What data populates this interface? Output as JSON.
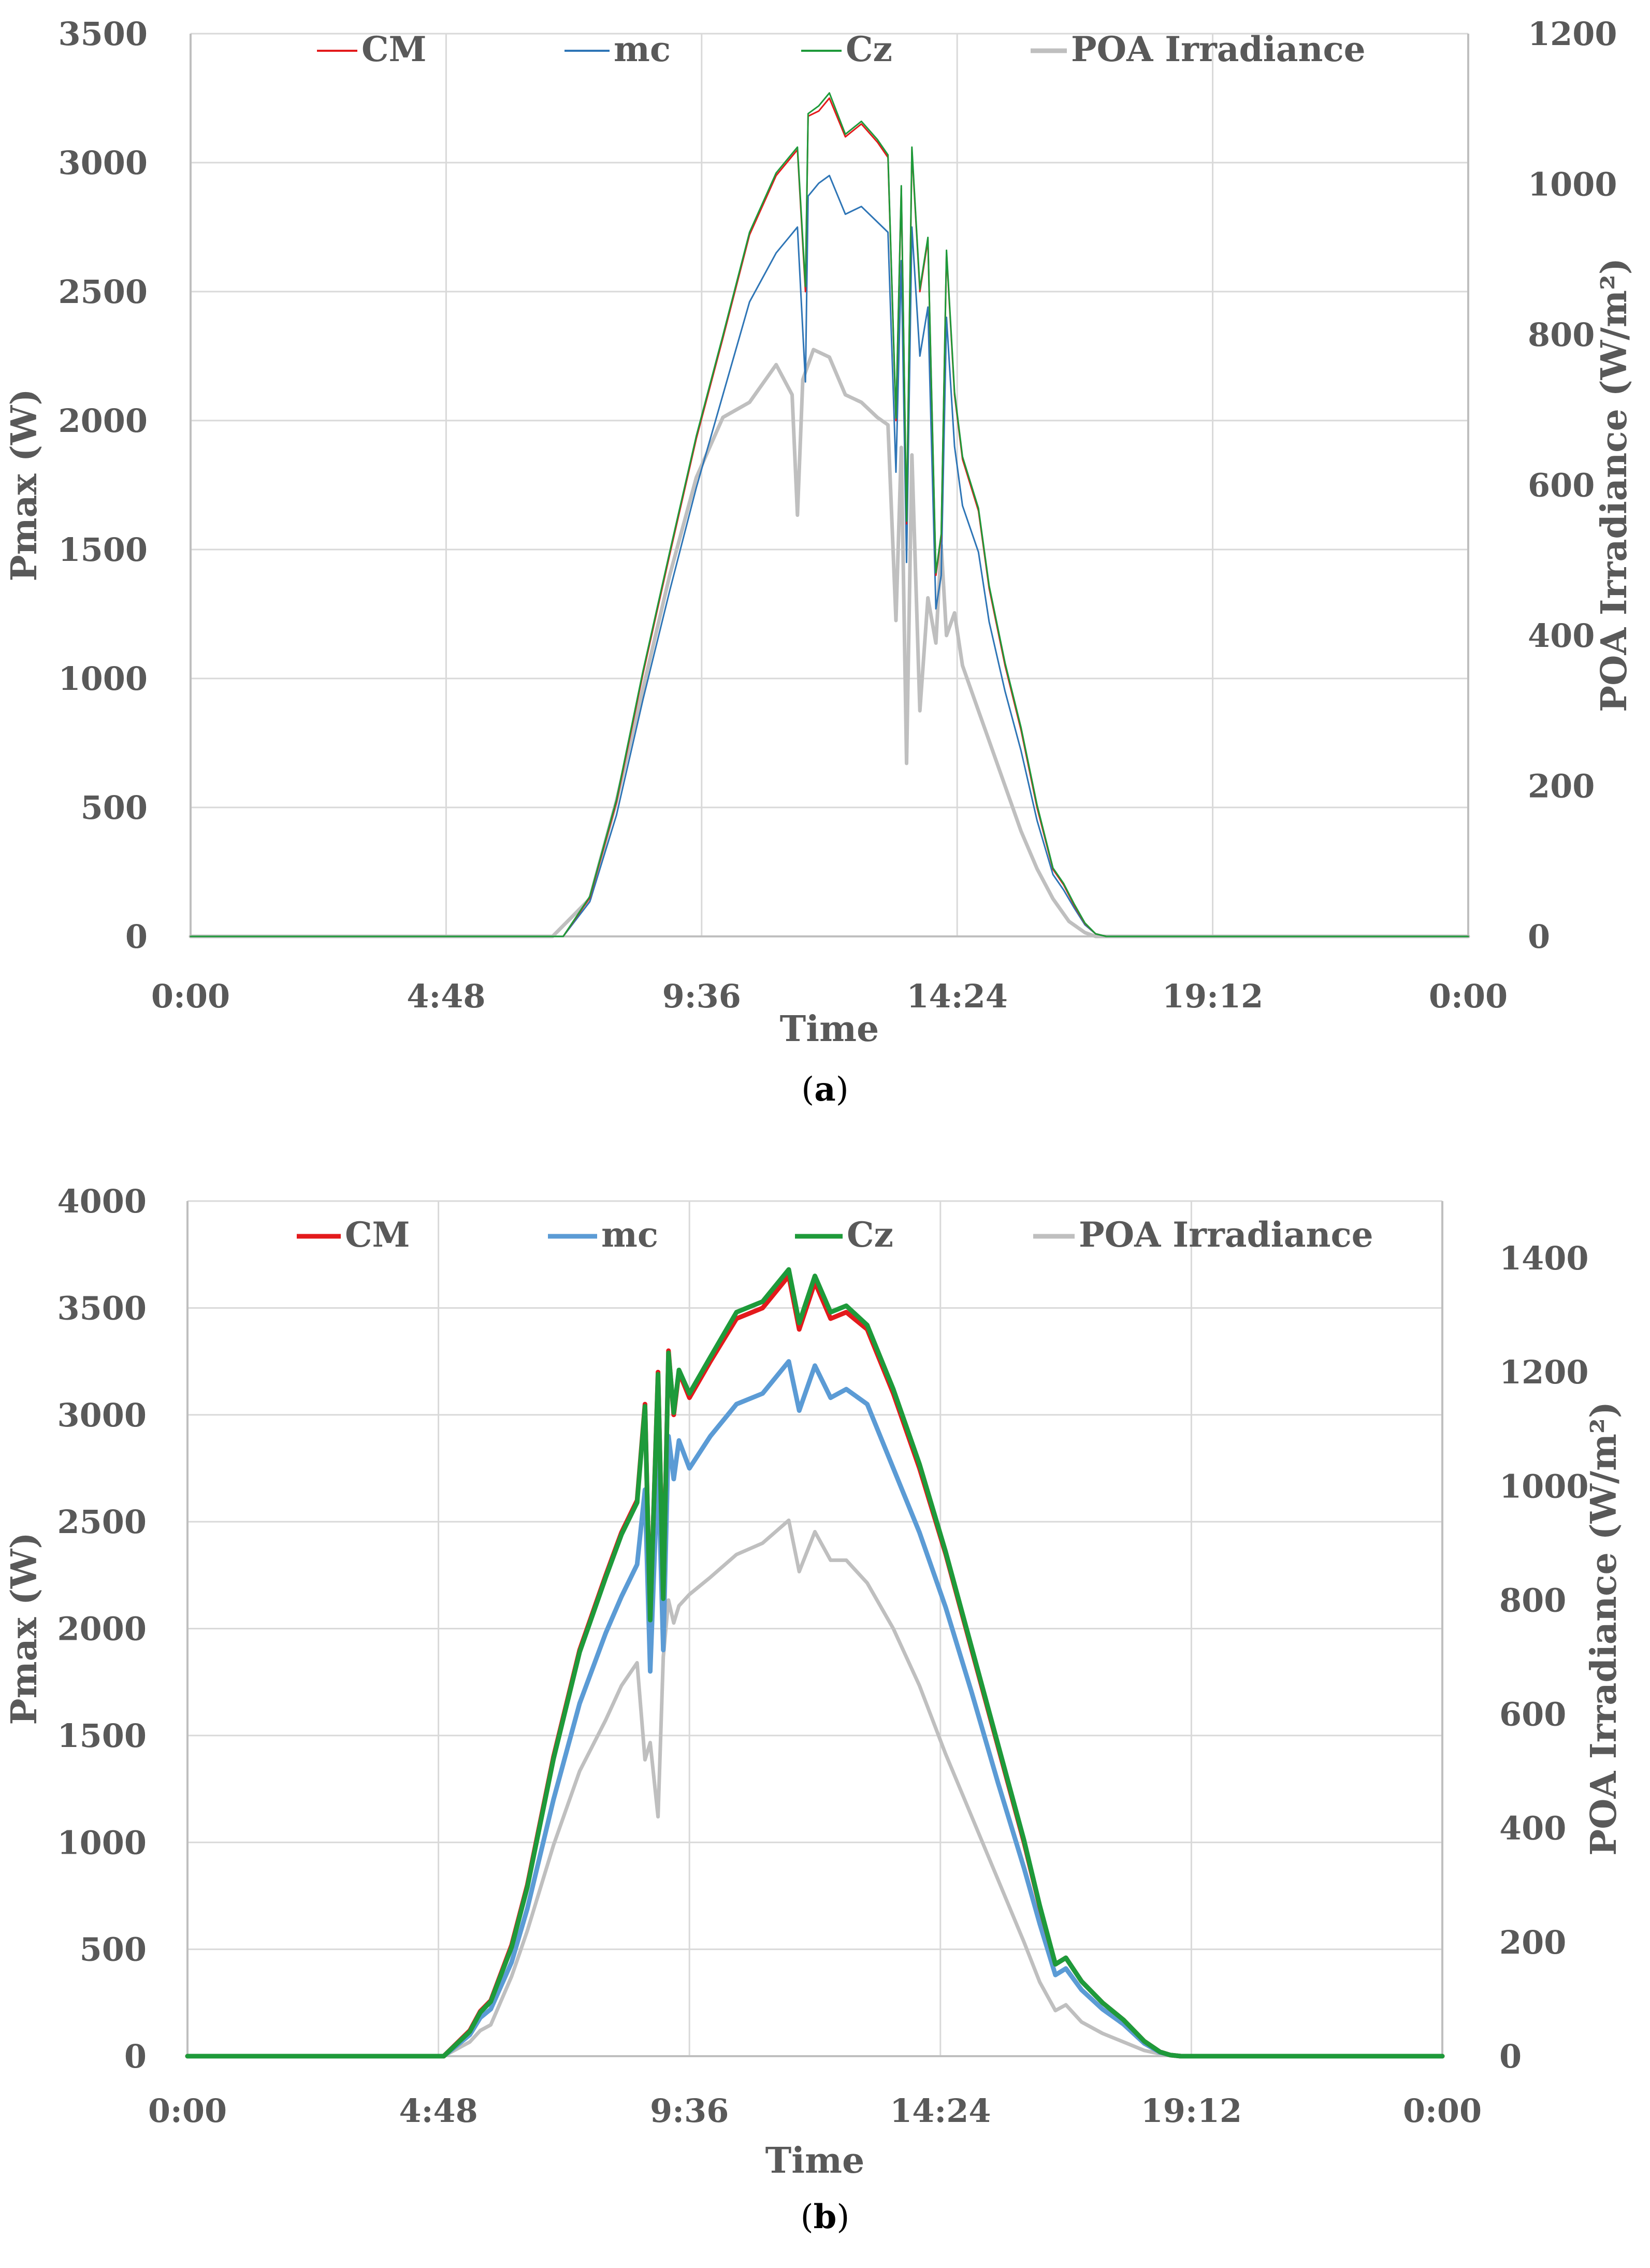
{
  "chart_data": [
    {
      "type": "line",
      "panel": "a",
      "caption": {
        "open": "(",
        "letter": "a",
        "close": ")"
      },
      "xlabel": "Time",
      "ylabel_left": "Pmax (W)",
      "ylabel_right": "POA Irradiance (W/m²)",
      "x_ticks": [
        "0:00",
        "4:48",
        "9:36",
        "14:24",
        "19:12",
        "0:00"
      ],
      "x_range_hours": [
        0,
        24
      ],
      "ylim_left": [
        0,
        3500
      ],
      "ylim_right": [
        0,
        1200
      ],
      "y_ticks_left": [
        0,
        500,
        1000,
        1500,
        2000,
        2500,
        3000,
        3500
      ],
      "y_ticks_right": [
        0,
        200,
        400,
        600,
        800,
        1000,
        1200
      ],
      "legend_position": "top",
      "series": [
        {
          "name": "CM",
          "color": "#e31a1c",
          "width": 3,
          "axis": "left",
          "x": [
            7.0,
            7.5,
            8.0,
            8.5,
            9.0,
            9.5,
            10.0,
            10.5,
            11.0,
            11.4,
            11.55,
            11.6,
            11.8,
            12.0,
            12.3,
            12.6,
            12.9,
            13.1,
            13.25,
            13.35,
            13.45,
            13.55,
            13.7,
            13.85,
            14.0,
            14.1,
            14.2,
            14.35,
            14.5,
            14.8,
            15.0,
            15.3,
            15.6,
            15.9,
            16.2,
            16.4,
            16.6,
            16.8,
            17.0,
            17.2
          ],
          "y": [
            0,
            150,
            520,
            1020,
            1480,
            1930,
            2320,
            2720,
            2950,
            3050,
            2500,
            3180,
            3200,
            3250,
            3100,
            3150,
            3080,
            3020,
            2000,
            2900,
            1600,
            3050,
            2500,
            2700,
            1400,
            1550,
            2650,
            2100,
            1850,
            1650,
            1350,
            1050,
            800,
            500,
            260,
            200,
            120,
            50,
            10,
            0
          ]
        },
        {
          "name": "mc",
          "color": "#2e75b6",
          "width": 3,
          "axis": "left",
          "x": [
            7.0,
            7.5,
            8.0,
            8.5,
            9.0,
            9.5,
            10.0,
            10.5,
            11.0,
            11.4,
            11.55,
            11.6,
            11.8,
            12.0,
            12.3,
            12.6,
            12.9,
            13.1,
            13.25,
            13.35,
            13.45,
            13.55,
            13.7,
            13.85,
            14.0,
            14.1,
            14.2,
            14.35,
            14.5,
            14.8,
            15.0,
            15.3,
            15.6,
            15.9,
            16.2,
            16.4,
            16.6,
            16.8,
            17.0,
            17.2
          ],
          "y": [
            0,
            135,
            470,
            920,
            1340,
            1740,
            2100,
            2460,
            2650,
            2750,
            2150,
            2870,
            2920,
            2950,
            2800,
            2830,
            2770,
            2730,
            1800,
            2620,
            1450,
            2750,
            2250,
            2440,
            1270,
            1400,
            2400,
            1900,
            1670,
            1490,
            1220,
            950,
            720,
            450,
            240,
            180,
            110,
            45,
            10,
            0
          ]
        },
        {
          "name": "Cz",
          "color": "#1e9a3a",
          "width": 3,
          "axis": "left",
          "x": [
            7.0,
            7.5,
            8.0,
            8.5,
            9.0,
            9.5,
            10.0,
            10.5,
            11.0,
            11.4,
            11.55,
            11.6,
            11.8,
            12.0,
            12.3,
            12.6,
            12.9,
            13.1,
            13.25,
            13.35,
            13.45,
            13.55,
            13.7,
            13.85,
            14.0,
            14.1,
            14.2,
            14.35,
            14.5,
            14.8,
            15.0,
            15.3,
            15.6,
            15.9,
            16.2,
            16.4,
            16.6,
            16.8,
            17.0,
            17.2
          ],
          "y": [
            0,
            155,
            530,
            1030,
            1490,
            1940,
            2330,
            2730,
            2960,
            3060,
            2520,
            3190,
            3220,
            3270,
            3110,
            3160,
            3090,
            3030,
            2010,
            2910,
            1610,
            3060,
            2510,
            2710,
            1410,
            1560,
            2660,
            2110,
            1860,
            1660,
            1360,
            1060,
            810,
            510,
            265,
            205,
            125,
            52,
            10,
            0
          ]
        },
        {
          "name": "POA Irradiance",
          "color": "#bfbfbf",
          "width": 7,
          "axis": "right",
          "x": [
            6.8,
            7.5,
            8.0,
            8.5,
            9.0,
            9.5,
            10.0,
            10.5,
            11.0,
            11.3,
            11.4,
            11.5,
            11.7,
            12.0,
            12.3,
            12.6,
            12.9,
            13.1,
            13.25,
            13.35,
            13.45,
            13.55,
            13.7,
            13.85,
            14.0,
            14.1,
            14.2,
            14.35,
            14.5,
            14.8,
            15.0,
            15.3,
            15.6,
            15.9,
            16.2,
            16.5,
            16.8,
            17.0
          ],
          "y": [
            0,
            50,
            180,
            330,
            480,
            610,
            690,
            710,
            760,
            720,
            560,
            740,
            780,
            770,
            720,
            710,
            690,
            680,
            420,
            650,
            230,
            640,
            300,
            450,
            390,
            520,
            400,
            430,
            360,
            300,
            260,
            200,
            140,
            90,
            50,
            20,
            5,
            0
          ]
        }
      ]
    },
    {
      "type": "line",
      "panel": "b",
      "caption": {
        "open": "(",
        "letter": "b",
        "close": ")"
      },
      "xlabel": "Time",
      "ylabel_left": "Pmax (W)",
      "ylabel_right": "POA Irradiance (W/m²)",
      "x_ticks": [
        "0:00",
        "4:48",
        "9:36",
        "14:24",
        "19:12",
        "0:00"
      ],
      "x_range_hours": [
        0,
        24
      ],
      "ylim_left": [
        0,
        4000
      ],
      "ylim_right": [
        0,
        1500
      ],
      "y_ticks_left": [
        0,
        500,
        1000,
        1500,
        2000,
        2500,
        3000,
        3500,
        4000
      ],
      "y_ticks_right": [
        0,
        200,
        400,
        600,
        800,
        1000,
        1200,
        1400
      ],
      "legend_position": "top",
      "series": [
        {
          "name": "CM",
          "color": "#e31a1c",
          "width": 9,
          "axis": "left",
          "x": [
            4.9,
            5.4,
            5.6,
            5.8,
            6.2,
            6.5,
            7.0,
            7.5,
            8.0,
            8.3,
            8.6,
            8.75,
            8.85,
            9.0,
            9.1,
            9.2,
            9.3,
            9.4,
            9.6,
            10.0,
            10.5,
            11.0,
            11.5,
            11.7,
            12.0,
            12.3,
            12.6,
            13.0,
            13.5,
            14.0,
            14.5,
            15.0,
            15.5,
            16.0,
            16.3,
            16.6,
            16.8,
            17.1,
            17.5,
            17.9,
            18.3,
            18.6,
            18.8,
            19.0
          ],
          "y": [
            0,
            120,
            210,
            260,
            520,
            800,
            1400,
            1900,
            2250,
            2450,
            2600,
            3050,
            2050,
            3200,
            2150,
            3300,
            3000,
            3200,
            3080,
            3250,
            3450,
            3500,
            3650,
            3400,
            3620,
            3450,
            3480,
            3400,
            3100,
            2750,
            2350,
            1900,
            1450,
            1000,
            700,
            430,
            460,
            350,
            250,
            170,
            70,
            20,
            5,
            0
          ]
        },
        {
          "name": "mc",
          "color": "#5b9bd5",
          "width": 9,
          "axis": "left",
          "x": [
            4.9,
            5.4,
            5.6,
            5.8,
            6.2,
            6.5,
            7.0,
            7.5,
            8.0,
            8.3,
            8.6,
            8.75,
            8.85,
            9.0,
            9.1,
            9.2,
            9.3,
            9.4,
            9.6,
            10.0,
            10.5,
            11.0,
            11.5,
            11.7,
            12.0,
            12.3,
            12.6,
            13.0,
            13.5,
            14.0,
            14.5,
            15.0,
            15.5,
            16.0,
            16.3,
            16.6,
            16.8,
            17.1,
            17.5,
            17.9,
            18.3,
            18.6,
            18.8,
            19.0
          ],
          "y": [
            0,
            100,
            180,
            220,
            440,
            690,
            1200,
            1650,
            1980,
            2150,
            2300,
            2650,
            1800,
            2780,
            1900,
            2900,
            2700,
            2880,
            2750,
            2900,
            3050,
            3100,
            3250,
            3020,
            3230,
            3080,
            3120,
            3050,
            2750,
            2450,
            2100,
            1700,
            1280,
            880,
            620,
            380,
            410,
            310,
            220,
            150,
            60,
            18,
            5,
            0
          ]
        },
        {
          "name": "Cz",
          "color": "#1e9a3a",
          "width": 9,
          "axis": "left",
          "x": [
            4.9,
            5.4,
            5.6,
            5.8,
            6.2,
            6.5,
            7.0,
            7.5,
            8.0,
            8.3,
            8.6,
            8.75,
            8.85,
            9.0,
            9.1,
            9.2,
            9.3,
            9.4,
            9.6,
            10.0,
            10.5,
            11.0,
            11.5,
            11.7,
            12.0,
            12.3,
            12.6,
            13.0,
            13.5,
            14.0,
            14.5,
            15.0,
            15.5,
            16.0,
            16.3,
            16.6,
            16.8,
            17.1,
            17.5,
            17.9,
            18.3,
            18.6,
            18.8,
            19.0
          ],
          "y": [
            0,
            115,
            205,
            255,
            510,
            790,
            1390,
            1890,
            2240,
            2440,
            2590,
            3040,
            2040,
            3190,
            2140,
            3290,
            3010,
            3210,
            3100,
            3270,
            3480,
            3530,
            3680,
            3430,
            3650,
            3480,
            3510,
            3420,
            3120,
            2770,
            2360,
            1910,
            1460,
            1010,
            705,
            430,
            460,
            350,
            250,
            170,
            70,
            20,
            5,
            0
          ]
        },
        {
          "name": "POA Irradiance",
          "color": "#bfbfbf",
          "width": 7,
          "axis": "right",
          "x": [
            4.9,
            5.4,
            5.6,
            5.8,
            6.2,
            6.5,
            7.0,
            7.5,
            8.0,
            8.3,
            8.6,
            8.75,
            8.85,
            9.0,
            9.1,
            9.2,
            9.3,
            9.4,
            9.6,
            10.0,
            10.5,
            11.0,
            11.5,
            11.7,
            12.0,
            12.3,
            12.6,
            13.0,
            13.5,
            14.0,
            14.5,
            15.0,
            15.5,
            16.0,
            16.3,
            16.6,
            16.8,
            17.1,
            17.5,
            17.9,
            18.3,
            18.6,
            18.8,
            19.0
          ],
          "y": [
            0,
            25,
            45,
            55,
            140,
            220,
            370,
            500,
            590,
            650,
            690,
            520,
            550,
            420,
            700,
            800,
            760,
            790,
            810,
            840,
            880,
            900,
            940,
            850,
            920,
            870,
            870,
            830,
            750,
            650,
            530,
            420,
            310,
            200,
            130,
            80,
            90,
            60,
            40,
            25,
            10,
            4,
            1,
            0
          ]
        }
      ]
    }
  ]
}
